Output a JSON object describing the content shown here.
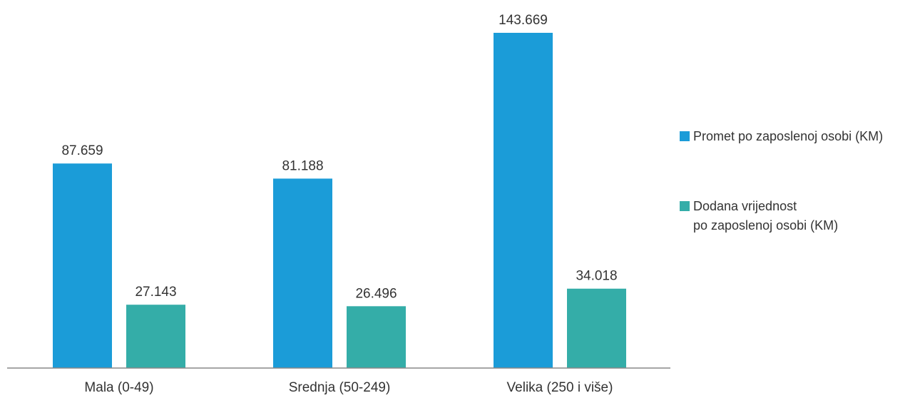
{
  "chart_data": {
    "type": "bar",
    "categories": [
      "Mala (0-49)",
      "Srednja (50-249)",
      "Velika (250 i više)"
    ],
    "series": [
      {
        "name": "Promet po zaposlenoj osobi (KM)",
        "legend_lines": [
          "Promet po zaposlenoj osobi (KM)"
        ],
        "values": [
          87659,
          81188,
          143669
        ],
        "labels": [
          "87.659",
          "81.188",
          "143.669"
        ],
        "color": "#1b9cd8"
      },
      {
        "name": "Dodana vrijednost po zaposlenoj osobi (KM)",
        "legend_lines": [
          "Dodana vrijednost",
          "po zaposlenoj osobi (KM)"
        ],
        "values": [
          27143,
          26496,
          34018
        ],
        "labels": [
          "27.143",
          "26.496",
          "34.018"
        ],
        "color": "#34ada8"
      }
    ],
    "ylim": [
      0,
      143669
    ],
    "grid": false,
    "legend_position": "right",
    "axis_color": "#888888"
  }
}
